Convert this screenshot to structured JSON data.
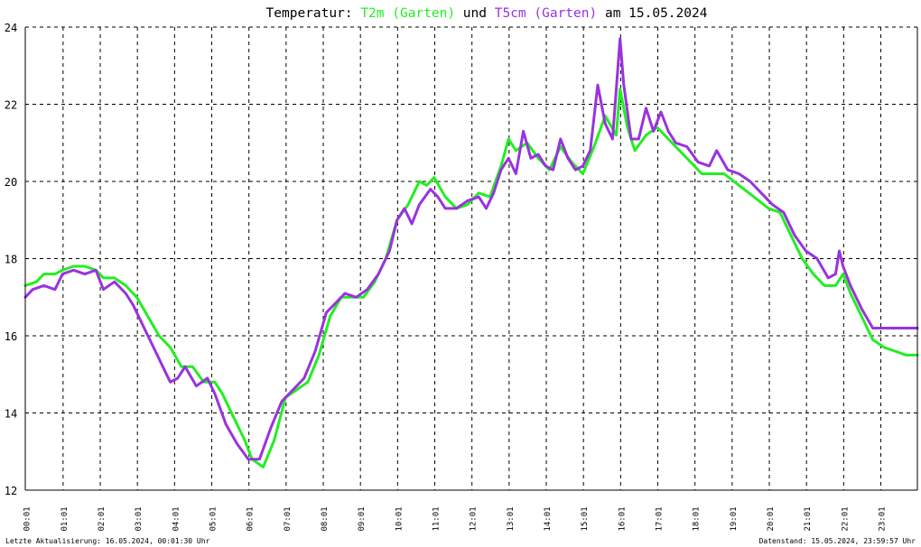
{
  "colors": {
    "background": "#ffffff",
    "grid": "#000000",
    "axis": "#000000",
    "t2m": "#22ee22",
    "t5cm": "#9933dd",
    "text": "#000000"
  },
  "title": {
    "prefix": "Temperatur: ",
    "series1": "T2m (Garten)",
    "middle": " und ",
    "series2": "T5cm (Garten)",
    "suffix": " am 15.05.2024"
  },
  "footer": {
    "left": "Letzte Aktualisierung: 16.05.2024, 00:01:30 Uhr",
    "right": "Datenstand: 15.05.2024, 23:59:57 Uhr"
  },
  "chart_data": {
    "type": "line",
    "ylim": [
      12,
      24
    ],
    "yticks": [
      "24",
      "22",
      "20",
      "18",
      "16",
      "14",
      "12"
    ],
    "yvalues": [
      24,
      22,
      20,
      18,
      16,
      14,
      12
    ],
    "xlim": [
      0,
      24
    ],
    "xticks": [
      "00:01",
      "01:01",
      "02:01",
      "03:01",
      "04:01",
      "05:01",
      "06:01",
      "07:01",
      "08:01",
      "09:01",
      "10:01",
      "11:01",
      "12:01",
      "13:01",
      "14:01",
      "15:01",
      "16:01",
      "17:01",
      "18:01",
      "19:01",
      "20:01",
      "21:01",
      "22:01",
      "23:01"
    ],
    "grid": true,
    "series": [
      {
        "name": "T2m (Garten)",
        "color": "#22ee22",
        "points": [
          [
            0.0,
            17.3
          ],
          [
            0.3,
            17.4
          ],
          [
            0.5,
            17.6
          ],
          [
            0.8,
            17.6
          ],
          [
            1.0,
            17.7
          ],
          [
            1.3,
            17.8
          ],
          [
            1.6,
            17.8
          ],
          [
            1.9,
            17.7
          ],
          [
            2.1,
            17.5
          ],
          [
            2.4,
            17.5
          ],
          [
            2.7,
            17.3
          ],
          [
            3.0,
            17.0
          ],
          [
            3.3,
            16.5
          ],
          [
            3.6,
            16.0
          ],
          [
            3.9,
            15.7
          ],
          [
            4.2,
            15.2
          ],
          [
            4.5,
            15.2
          ],
          [
            4.8,
            14.8
          ],
          [
            5.1,
            14.8
          ],
          [
            5.3,
            14.5
          ],
          [
            5.6,
            13.9
          ],
          [
            5.9,
            13.3
          ],
          [
            6.1,
            12.8
          ],
          [
            6.4,
            12.6
          ],
          [
            6.7,
            13.3
          ],
          [
            7.0,
            14.4
          ],
          [
            7.3,
            14.6
          ],
          [
            7.6,
            14.8
          ],
          [
            7.9,
            15.5
          ],
          [
            8.2,
            16.5
          ],
          [
            8.5,
            17.0
          ],
          [
            8.8,
            17.0
          ],
          [
            9.1,
            17.0
          ],
          [
            9.4,
            17.4
          ],
          [
            9.7,
            18.0
          ],
          [
            10.0,
            19.0
          ],
          [
            10.3,
            19.4
          ],
          [
            10.6,
            20.0
          ],
          [
            10.8,
            19.9
          ],
          [
            11.0,
            20.1
          ],
          [
            11.3,
            19.6
          ],
          [
            11.6,
            19.3
          ],
          [
            11.9,
            19.4
          ],
          [
            12.2,
            19.7
          ],
          [
            12.5,
            19.6
          ],
          [
            12.8,
            20.4
          ],
          [
            13.0,
            21.1
          ],
          [
            13.2,
            20.8
          ],
          [
            13.5,
            21.0
          ],
          [
            13.8,
            20.6
          ],
          [
            14.1,
            20.3
          ],
          [
            14.4,
            20.9
          ],
          [
            14.7,
            20.5
          ],
          [
            15.0,
            20.2
          ],
          [
            15.3,
            20.9
          ],
          [
            15.6,
            21.7
          ],
          [
            15.9,
            21.2
          ],
          [
            16.0,
            22.4
          ],
          [
            16.2,
            21.4
          ],
          [
            16.4,
            20.8
          ],
          [
            16.7,
            21.2
          ],
          [
            17.0,
            21.4
          ],
          [
            17.3,
            21.1
          ],
          [
            17.6,
            20.8
          ],
          [
            17.9,
            20.5
          ],
          [
            18.2,
            20.2
          ],
          [
            18.5,
            20.2
          ],
          [
            18.8,
            20.2
          ],
          [
            19.2,
            19.9
          ],
          [
            19.6,
            19.6
          ],
          [
            20.0,
            19.3
          ],
          [
            20.3,
            19.2
          ],
          [
            20.6,
            18.6
          ],
          [
            20.9,
            18.0
          ],
          [
            21.2,
            17.6
          ],
          [
            21.5,
            17.3
          ],
          [
            21.8,
            17.3
          ],
          [
            22.0,
            17.6
          ],
          [
            22.2,
            17.1
          ],
          [
            22.5,
            16.5
          ],
          [
            22.8,
            15.9
          ],
          [
            23.1,
            15.7
          ],
          [
            23.4,
            15.6
          ],
          [
            23.7,
            15.5
          ],
          [
            24.0,
            15.5
          ]
        ]
      },
      {
        "name": "T5cm (Garten)",
        "color": "#9933dd",
        "points": [
          [
            0.0,
            17.0
          ],
          [
            0.2,
            17.2
          ],
          [
            0.5,
            17.3
          ],
          [
            0.8,
            17.2
          ],
          [
            1.0,
            17.6
          ],
          [
            1.3,
            17.7
          ],
          [
            1.6,
            17.6
          ],
          [
            1.9,
            17.7
          ],
          [
            2.1,
            17.2
          ],
          [
            2.4,
            17.4
          ],
          [
            2.7,
            17.1
          ],
          [
            2.9,
            16.8
          ],
          [
            3.2,
            16.2
          ],
          [
            3.5,
            15.6
          ],
          [
            3.7,
            15.2
          ],
          [
            3.9,
            14.8
          ],
          [
            4.1,
            14.9
          ],
          [
            4.3,
            15.2
          ],
          [
            4.6,
            14.7
          ],
          [
            4.9,
            14.9
          ],
          [
            5.1,
            14.5
          ],
          [
            5.4,
            13.7
          ],
          [
            5.7,
            13.2
          ],
          [
            6.0,
            12.8
          ],
          [
            6.3,
            12.8
          ],
          [
            6.6,
            13.6
          ],
          [
            6.9,
            14.3
          ],
          [
            7.2,
            14.6
          ],
          [
            7.5,
            14.9
          ],
          [
            7.8,
            15.6
          ],
          [
            8.1,
            16.6
          ],
          [
            8.4,
            16.9
          ],
          [
            8.6,
            17.1
          ],
          [
            8.9,
            17.0
          ],
          [
            9.2,
            17.2
          ],
          [
            9.5,
            17.6
          ],
          [
            9.8,
            18.2
          ],
          [
            10.0,
            19.0
          ],
          [
            10.2,
            19.3
          ],
          [
            10.4,
            18.9
          ],
          [
            10.6,
            19.4
          ],
          [
            10.9,
            19.8
          ],
          [
            11.1,
            19.6
          ],
          [
            11.3,
            19.3
          ],
          [
            11.6,
            19.3
          ],
          [
            11.9,
            19.5
          ],
          [
            12.2,
            19.6
          ],
          [
            12.4,
            19.3
          ],
          [
            12.6,
            19.7
          ],
          [
            12.8,
            20.3
          ],
          [
            13.0,
            20.6
          ],
          [
            13.2,
            20.2
          ],
          [
            13.4,
            21.3
          ],
          [
            13.6,
            20.6
          ],
          [
            13.8,
            20.7
          ],
          [
            14.0,
            20.4
          ],
          [
            14.2,
            20.3
          ],
          [
            14.4,
            21.1
          ],
          [
            14.6,
            20.6
          ],
          [
            14.8,
            20.3
          ],
          [
            15.0,
            20.4
          ],
          [
            15.2,
            20.8
          ],
          [
            15.4,
            22.5
          ],
          [
            15.6,
            21.5
          ],
          [
            15.8,
            21.1
          ],
          [
            16.0,
            23.7
          ],
          [
            16.1,
            22.5
          ],
          [
            16.3,
            21.1
          ],
          [
            16.5,
            21.1
          ],
          [
            16.7,
            21.9
          ],
          [
            16.9,
            21.3
          ],
          [
            17.1,
            21.8
          ],
          [
            17.3,
            21.3
          ],
          [
            17.5,
            21.0
          ],
          [
            17.8,
            20.9
          ],
          [
            18.1,
            20.5
          ],
          [
            18.4,
            20.4
          ],
          [
            18.6,
            20.8
          ],
          [
            18.9,
            20.3
          ],
          [
            19.2,
            20.2
          ],
          [
            19.5,
            20.0
          ],
          [
            19.8,
            19.7
          ],
          [
            20.1,
            19.4
          ],
          [
            20.4,
            19.2
          ],
          [
            20.7,
            18.6
          ],
          [
            21.0,
            18.2
          ],
          [
            21.3,
            18.0
          ],
          [
            21.6,
            17.5
          ],
          [
            21.8,
            17.6
          ],
          [
            21.9,
            18.2
          ],
          [
            22.0,
            17.8
          ],
          [
            22.2,
            17.3
          ],
          [
            22.5,
            16.7
          ],
          [
            22.8,
            16.2
          ],
          [
            23.1,
            16.2
          ],
          [
            23.4,
            16.2
          ],
          [
            23.7,
            16.2
          ],
          [
            24.0,
            16.2
          ]
        ]
      }
    ]
  }
}
